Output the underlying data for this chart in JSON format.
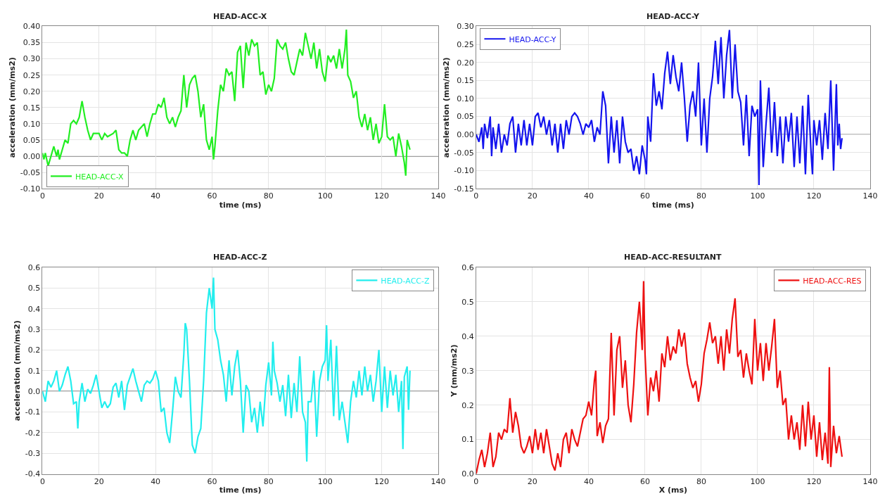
{
  "chart_data": [
    {
      "type": "line",
      "title": "HEAD-ACC-X",
      "xlabel": "time (ms)",
      "ylabel": "acceleration (mm/ms2)",
      "legend": "bottom left",
      "grid": true,
      "line_style": "solid",
      "xlim": [
        0,
        140
      ],
      "xticks": [
        0,
        20,
        40,
        60,
        80,
        100,
        120,
        140
      ],
      "ylim": [
        -0.1,
        0.4
      ],
      "yticks": [
        {
          "value": -0.1,
          "label": "-0.10"
        },
        {
          "value": -0.05,
          "label": "-0.05"
        },
        {
          "value": 0,
          "label": "0.00"
        },
        {
          "value": 0.05,
          "label": "0.05"
        },
        {
          "value": 0.1,
          "label": "0.10"
        },
        {
          "value": 0.15,
          "label": "0.15"
        },
        {
          "value": 0.2,
          "label": "0.20"
        },
        {
          "value": 0.25,
          "label": "0.25"
        },
        {
          "value": 0.3,
          "label": "0.30"
        },
        {
          "value": 0.35,
          "label": "0.35"
        },
        {
          "value": 0.4,
          "label": "0.40"
        }
      ],
      "ref_lines": [
        {
          "axis": "y",
          "value": 0,
          "color": "#808080"
        }
      ],
      "series": [
        {
          "name": "HEAD-ACC-X",
          "color": "#22ee22",
          "x": [
            0,
            0.5,
            1,
            2,
            3,
            4,
            5,
            5.5,
            6,
            7,
            8,
            9,
            10,
            11,
            12,
            13,
            14,
            15,
            16,
            17,
            18,
            20,
            21,
            22,
            23,
            25,
            26,
            27,
            28,
            29,
            30,
            31,
            32,
            33,
            34,
            35,
            36,
            37,
            38,
            39,
            40,
            41,
            42,
            43,
            44,
            45,
            46,
            47,
            48,
            49,
            50,
            51,
            52,
            53,
            54,
            55,
            56,
            57,
            58,
            59,
            60,
            60.5,
            61,
            62,
            63,
            64,
            65,
            66,
            67,
            68,
            69,
            70,
            71,
            72,
            73,
            74,
            75,
            76,
            77,
            78,
            79,
            80,
            81,
            82,
            83,
            84,
            85,
            86,
            87,
            88,
            89,
            90,
            91,
            92,
            93,
            94,
            95,
            96,
            97,
            98,
            99,
            100,
            101,
            102,
            103,
            104,
            105,
            106,
            107,
            107.5,
            108,
            109,
            110,
            111,
            112,
            113,
            114,
            115,
            116,
            117,
            118,
            119,
            120,
            121,
            122,
            123,
            124,
            125,
            126,
            127,
            128,
            128.5,
            129,
            130
          ],
          "values": [
            0.01,
            -0.01,
            0.01,
            -0.03,
            0.0,
            0.03,
            0.0,
            0.02,
            -0.01,
            0.02,
            0.05,
            0.04,
            0.1,
            0.11,
            0.1,
            0.12,
            0.17,
            0.12,
            0.08,
            0.05,
            0.07,
            0.07,
            0.05,
            0.07,
            0.06,
            0.07,
            0.08,
            0.02,
            0.01,
            0.01,
            0.0,
            0.05,
            0.08,
            0.05,
            0.08,
            0.09,
            0.1,
            0.06,
            0.1,
            0.13,
            0.13,
            0.16,
            0.15,
            0.18,
            0.12,
            0.1,
            0.12,
            0.09,
            0.12,
            0.14,
            0.25,
            0.15,
            0.22,
            0.24,
            0.25,
            0.2,
            0.12,
            0.16,
            0.05,
            0.02,
            0.06,
            -0.01,
            0.03,
            0.14,
            0.22,
            0.2,
            0.27,
            0.25,
            0.26,
            0.17,
            0.32,
            0.34,
            0.21,
            0.35,
            0.31,
            0.36,
            0.34,
            0.35,
            0.25,
            0.26,
            0.19,
            0.22,
            0.2,
            0.24,
            0.36,
            0.34,
            0.33,
            0.35,
            0.3,
            0.26,
            0.25,
            0.29,
            0.33,
            0.31,
            0.38,
            0.34,
            0.3,
            0.35,
            0.27,
            0.33,
            0.26,
            0.23,
            0.31,
            0.29,
            0.31,
            0.27,
            0.33,
            0.27,
            0.33,
            0.39,
            0.25,
            0.23,
            0.18,
            0.2,
            0.12,
            0.09,
            0.13,
            0.08,
            0.12,
            0.05,
            0.1,
            0.04,
            0.06,
            0.16,
            0.06,
            0.05,
            0.06,
            0.0,
            0.07,
            0.03,
            -0.02,
            -0.06,
            0.05,
            0.02
          ]
        }
      ]
    },
    {
      "type": "line",
      "title": "HEAD-ACC-Y",
      "xlabel": "time (ms)",
      "ylabel": "acceleration (mm/ms2)",
      "legend": "top left",
      "grid": true,
      "line_style": "solid",
      "xlim": [
        0,
        140
      ],
      "xticks": [
        0,
        20,
        40,
        60,
        80,
        100,
        120,
        140
      ],
      "ylim": [
        -0.15,
        0.3
      ],
      "yticks": [
        {
          "value": -0.15,
          "label": "-0.15"
        },
        {
          "value": -0.1,
          "label": "-0.10"
        },
        {
          "value": -0.05,
          "label": "-0.05"
        },
        {
          "value": 0,
          "label": "0.00"
        },
        {
          "value": 0.05,
          "label": "0.05"
        },
        {
          "value": 0.1,
          "label": "0.10"
        },
        {
          "value": 0.15,
          "label": "0.15"
        },
        {
          "value": 0.2,
          "label": "0.20"
        },
        {
          "value": 0.25,
          "label": "0.25"
        },
        {
          "value": 0.3,
          "label": "0.30"
        }
      ],
      "ref_lines": [
        {
          "axis": "y",
          "value": 0,
          "color": "#808080"
        }
      ],
      "series": [
        {
          "name": "HEAD-ACC-Y",
          "color": "#1414ee",
          "x": [
            0,
            1,
            2,
            2.5,
            3,
            4,
            5,
            5.5,
            6,
            7,
            8,
            9,
            10,
            11,
            12,
            13,
            14,
            15,
            16,
            17,
            18,
            19,
            20,
            21,
            22,
            23,
            24,
            25,
            26,
            27,
            28,
            29,
            30,
            31,
            32,
            33,
            34,
            35,
            36,
            37,
            38,
            39,
            40,
            41,
            42,
            43,
            44,
            45,
            46,
            47,
            48,
            49,
            50,
            51,
            52,
            53,
            54,
            55,
            56,
            57,
            58,
            59,
            60,
            60.5,
            61,
            62,
            63,
            64,
            65,
            66,
            67,
            68,
            69,
            70,
            71,
            72,
            73,
            74,
            75,
            76,
            77,
            78,
            79,
            80,
            81,
            82,
            83,
            84,
            85,
            86,
            87,
            88,
            89,
            90,
            91,
            92,
            93,
            94,
            95,
            96,
            97,
            98,
            99,
            100,
            100.5,
            101,
            102,
            103,
            104,
            105,
            106,
            107,
            108,
            109,
            110,
            111,
            112,
            113,
            114,
            115,
            116,
            117,
            118,
            119,
            119.5,
            120,
            121,
            122,
            123,
            124,
            125,
            126,
            127,
            128,
            128.5,
            129,
            129.5,
            130
          ],
          "values": [
            0.0,
            -0.02,
            0.02,
            -0.04,
            0.03,
            -0.01,
            0.05,
            -0.06,
            0.02,
            -0.04,
            0.03,
            -0.05,
            0.0,
            -0.03,
            0.03,
            0.05,
            -0.05,
            0.03,
            -0.03,
            0.04,
            -0.03,
            0.03,
            -0.03,
            0.05,
            0.06,
            0.02,
            0.05,
            0.0,
            0.04,
            -0.03,
            0.03,
            -0.05,
            0.03,
            -0.04,
            0.04,
            0.0,
            0.05,
            0.06,
            0.05,
            0.03,
            0.0,
            0.03,
            0.02,
            0.04,
            -0.02,
            0.02,
            0.0,
            0.12,
            0.08,
            -0.08,
            0.05,
            -0.05,
            0.04,
            -0.08,
            0.05,
            -0.02,
            -0.05,
            -0.04,
            -0.1,
            -0.06,
            -0.11,
            -0.03,
            -0.07,
            -0.11,
            0.05,
            -0.02,
            0.17,
            0.08,
            0.12,
            0.07,
            0.17,
            0.23,
            0.14,
            0.22,
            0.16,
            0.12,
            0.2,
            0.1,
            -0.02,
            0.08,
            0.12,
            0.05,
            0.2,
            -0.03,
            0.1,
            -0.05,
            0.1,
            0.16,
            0.26,
            0.14,
            0.27,
            0.1,
            0.22,
            0.29,
            0.1,
            0.25,
            0.12,
            0.09,
            -0.03,
            0.11,
            -0.06,
            0.08,
            0.05,
            0.07,
            -0.14,
            0.15,
            -0.09,
            0.03,
            0.13,
            -0.05,
            0.09,
            -0.06,
            0.05,
            -0.08,
            0.05,
            -0.02,
            0.06,
            -0.09,
            0.05,
            -0.08,
            0.08,
            -0.11,
            0.11,
            -0.05,
            -0.11,
            0.04,
            -0.03,
            0.04,
            -0.07,
            0.06,
            -0.04,
            0.15,
            -0.1,
            0.14,
            -0.03,
            0.03,
            -0.04,
            -0.01
          ]
        }
      ]
    },
    {
      "type": "line",
      "title": "HEAD-ACC-Z",
      "xlabel": "time (ms)",
      "ylabel": "acceleration (mm/ms2)",
      "legend": "top right",
      "grid": true,
      "line_style": "solid",
      "xlim": [
        0,
        140
      ],
      "xticks": [
        0,
        20,
        40,
        60,
        80,
        100,
        120,
        140
      ],
      "ylim": [
        -0.4,
        0.6
      ],
      "yticks": [
        {
          "value": -0.4,
          "label": "-0.4"
        },
        {
          "value": -0.3,
          "label": "-0.3"
        },
        {
          "value": -0.2,
          "label": "-0.2"
        },
        {
          "value": -0.1,
          "label": "-0.1"
        },
        {
          "value": 0,
          "label": "0.0"
        },
        {
          "value": 0.1,
          "label": "0.1"
        },
        {
          "value": 0.2,
          "label": "0.2"
        },
        {
          "value": 0.3,
          "label": "0.3"
        },
        {
          "value": 0.4,
          "label": "0.4"
        },
        {
          "value": 0.5,
          "label": "0.5"
        },
        {
          "value": 0.6,
          "label": "0.6"
        }
      ],
      "ref_lines": [
        {
          "axis": "y",
          "value": 0,
          "color": "#808080"
        }
      ],
      "series": [
        {
          "name": "HEAD-ACC-Z",
          "color": "#22eeee",
          "x": [
            0,
            1,
            2,
            3,
            4,
            5,
            6,
            7,
            8,
            9,
            10,
            11,
            12,
            12.5,
            13,
            14,
            15,
            16,
            17,
            18,
            19,
            20,
            21,
            22,
            23,
            24,
            25,
            26,
            27,
            28,
            29,
            30,
            31,
            32,
            33,
            34,
            35,
            36,
            37,
            38,
            39,
            40,
            41,
            42,
            43,
            44,
            45,
            46,
            47,
            48,
            49,
            50,
            50.5,
            51,
            52,
            53,
            54,
            55,
            56,
            57,
            58,
            59,
            60,
            60.5,
            61,
            62,
            63,
            64,
            65,
            66,
            67,
            68,
            69,
            70,
            71,
            72,
            73,
            74,
            75,
            76,
            77,
            78,
            79,
            80,
            81,
            81.5,
            82,
            83,
            84,
            85,
            86,
            87,
            88,
            89,
            90,
            91,
            92,
            93,
            93.5,
            94,
            95,
            96,
            97,
            98,
            99,
            100,
            100.5,
            101,
            102,
            103,
            104,
            105,
            106,
            107,
            108,
            109,
            110,
            111,
            112,
            113,
            114,
            115,
            116,
            117,
            118,
            119,
            120,
            121,
            122,
            123,
            124,
            125,
            126,
            127,
            127.5,
            128,
            129,
            129.5,
            130
          ],
          "values": [
            0.0,
            -0.05,
            0.05,
            0.02,
            0.05,
            0.1,
            0.0,
            0.03,
            0.08,
            0.12,
            0.05,
            -0.06,
            -0.05,
            -0.18,
            -0.05,
            0.04,
            -0.05,
            0.01,
            -0.01,
            0.03,
            0.08,
            0.0,
            -0.08,
            -0.05,
            -0.08,
            -0.06,
            0.02,
            0.04,
            -0.03,
            0.05,
            -0.09,
            0.03,
            0.07,
            0.11,
            0.05,
            0.0,
            -0.05,
            0.03,
            0.05,
            0.04,
            0.06,
            0.1,
            0.05,
            -0.1,
            -0.08,
            -0.2,
            -0.25,
            -0.1,
            0.07,
            0.0,
            -0.03,
            0.18,
            0.33,
            0.3,
            0.05,
            -0.26,
            -0.3,
            -0.22,
            -0.18,
            0.05,
            0.38,
            0.5,
            0.4,
            0.55,
            0.3,
            0.25,
            0.15,
            0.08,
            -0.05,
            0.15,
            -0.02,
            0.12,
            0.2,
            0.05,
            -0.2,
            0.03,
            0.0,
            -0.15,
            -0.08,
            -0.2,
            -0.05,
            -0.17,
            0.03,
            0.14,
            -0.02,
            0.24,
            0.1,
            0.04,
            -0.05,
            0.03,
            -0.12,
            0.08,
            -0.13,
            0.04,
            -0.1,
            0.17,
            -0.1,
            -0.15,
            -0.34,
            -0.05,
            -0.05,
            0.1,
            -0.22,
            0.05,
            0.12,
            0.15,
            0.32,
            0.05,
            0.25,
            -0.12,
            0.22,
            -0.14,
            -0.05,
            -0.15,
            -0.25,
            -0.05,
            0.05,
            -0.03,
            0.1,
            -0.02,
            0.12,
            0.0,
            0.08,
            -0.05,
            0.05,
            0.2,
            -0.1,
            0.12,
            -0.08,
            0.1,
            -0.02,
            0.08,
            -0.1,
            0.05,
            -0.28,
            0.07,
            0.12,
            -0.09,
            0.1
          ]
        }
      ]
    },
    {
      "type": "line",
      "title": "HEAD-ACC-RESULTANT",
      "xlabel": "X (ms)",
      "ylabel": "Y (mm/ms2)",
      "legend": "top right",
      "grid": true,
      "line_style": "solid",
      "xlim": [
        0,
        140
      ],
      "xticks": [
        0,
        20,
        40,
        60,
        80,
        100,
        120,
        140
      ],
      "ylim": [
        0,
        0.6
      ],
      "yticks": [
        {
          "value": 0,
          "label": "0.0"
        },
        {
          "value": 0.1,
          "label": "0.1"
        },
        {
          "value": 0.2,
          "label": "0.2"
        },
        {
          "value": 0.3,
          "label": "0.3"
        },
        {
          "value": 0.4,
          "label": "0.4"
        },
        {
          "value": 0.5,
          "label": "0.5"
        },
        {
          "value": 0.6,
          "label": "0.6"
        }
      ],
      "series": [
        {
          "name": "HEAD-ACC-RES",
          "color": "#ee1111",
          "x": [
            0,
            1,
            2,
            3,
            4,
            5,
            6,
            7,
            8,
            9,
            10,
            11,
            12,
            13,
            14,
            15,
            16,
            17,
            18,
            19,
            20,
            21,
            22,
            23,
            24,
            25,
            26,
            27,
            28,
            29,
            30,
            31,
            32,
            33,
            34,
            35,
            36,
            37,
            38,
            39,
            40,
            41,
            42,
            42.5,
            43,
            44,
            45,
            46,
            47,
            48,
            49,
            50,
            51,
            52,
            53,
            54,
            55,
            56,
            57,
            58,
            59,
            59.5,
            60,
            61,
            62,
            63,
            64,
            65,
            66,
            67,
            68,
            69,
            70,
            71,
            72,
            73,
            74,
            75,
            76,
            77,
            78,
            79,
            80,
            81,
            82,
            83,
            84,
            85,
            86,
            87,
            88,
            89,
            90,
            91,
            92,
            93,
            94,
            95,
            96,
            97,
            98,
            99,
            100,
            101,
            102,
            103,
            104,
            105,
            106,
            107,
            108,
            109,
            110,
            111,
            112,
            113,
            114,
            115,
            116,
            117,
            118,
            119,
            120,
            121,
            122,
            123,
            124,
            125,
            125.5,
            126,
            127,
            128,
            129,
            130
          ],
          "values": [
            0.0,
            0.04,
            0.07,
            0.02,
            0.06,
            0.12,
            0.02,
            0.05,
            0.12,
            0.1,
            0.13,
            0.12,
            0.22,
            0.12,
            0.18,
            0.14,
            0.08,
            0.06,
            0.08,
            0.11,
            0.06,
            0.13,
            0.07,
            0.12,
            0.06,
            0.13,
            0.08,
            0.03,
            0.01,
            0.06,
            0.02,
            0.1,
            0.12,
            0.06,
            0.13,
            0.1,
            0.08,
            0.12,
            0.16,
            0.17,
            0.21,
            0.17,
            0.27,
            0.3,
            0.11,
            0.15,
            0.09,
            0.14,
            0.16,
            0.41,
            0.17,
            0.36,
            0.4,
            0.25,
            0.33,
            0.2,
            0.15,
            0.26,
            0.41,
            0.5,
            0.36,
            0.56,
            0.35,
            0.17,
            0.28,
            0.24,
            0.3,
            0.21,
            0.35,
            0.31,
            0.4,
            0.33,
            0.37,
            0.35,
            0.42,
            0.37,
            0.41,
            0.32,
            0.28,
            0.25,
            0.27,
            0.21,
            0.26,
            0.35,
            0.39,
            0.44,
            0.38,
            0.4,
            0.32,
            0.4,
            0.3,
            0.42,
            0.35,
            0.45,
            0.51,
            0.34,
            0.36,
            0.28,
            0.35,
            0.3,
            0.26,
            0.45,
            0.3,
            0.38,
            0.27,
            0.38,
            0.3,
            0.37,
            0.45,
            0.25,
            0.3,
            0.2,
            0.22,
            0.1,
            0.17,
            0.1,
            0.15,
            0.07,
            0.2,
            0.08,
            0.21,
            0.1,
            0.17,
            0.05,
            0.15,
            0.04,
            0.12,
            0.03,
            0.31,
            0.02,
            0.14,
            0.06,
            0.11,
            0.05
          ]
        }
      ]
    }
  ]
}
